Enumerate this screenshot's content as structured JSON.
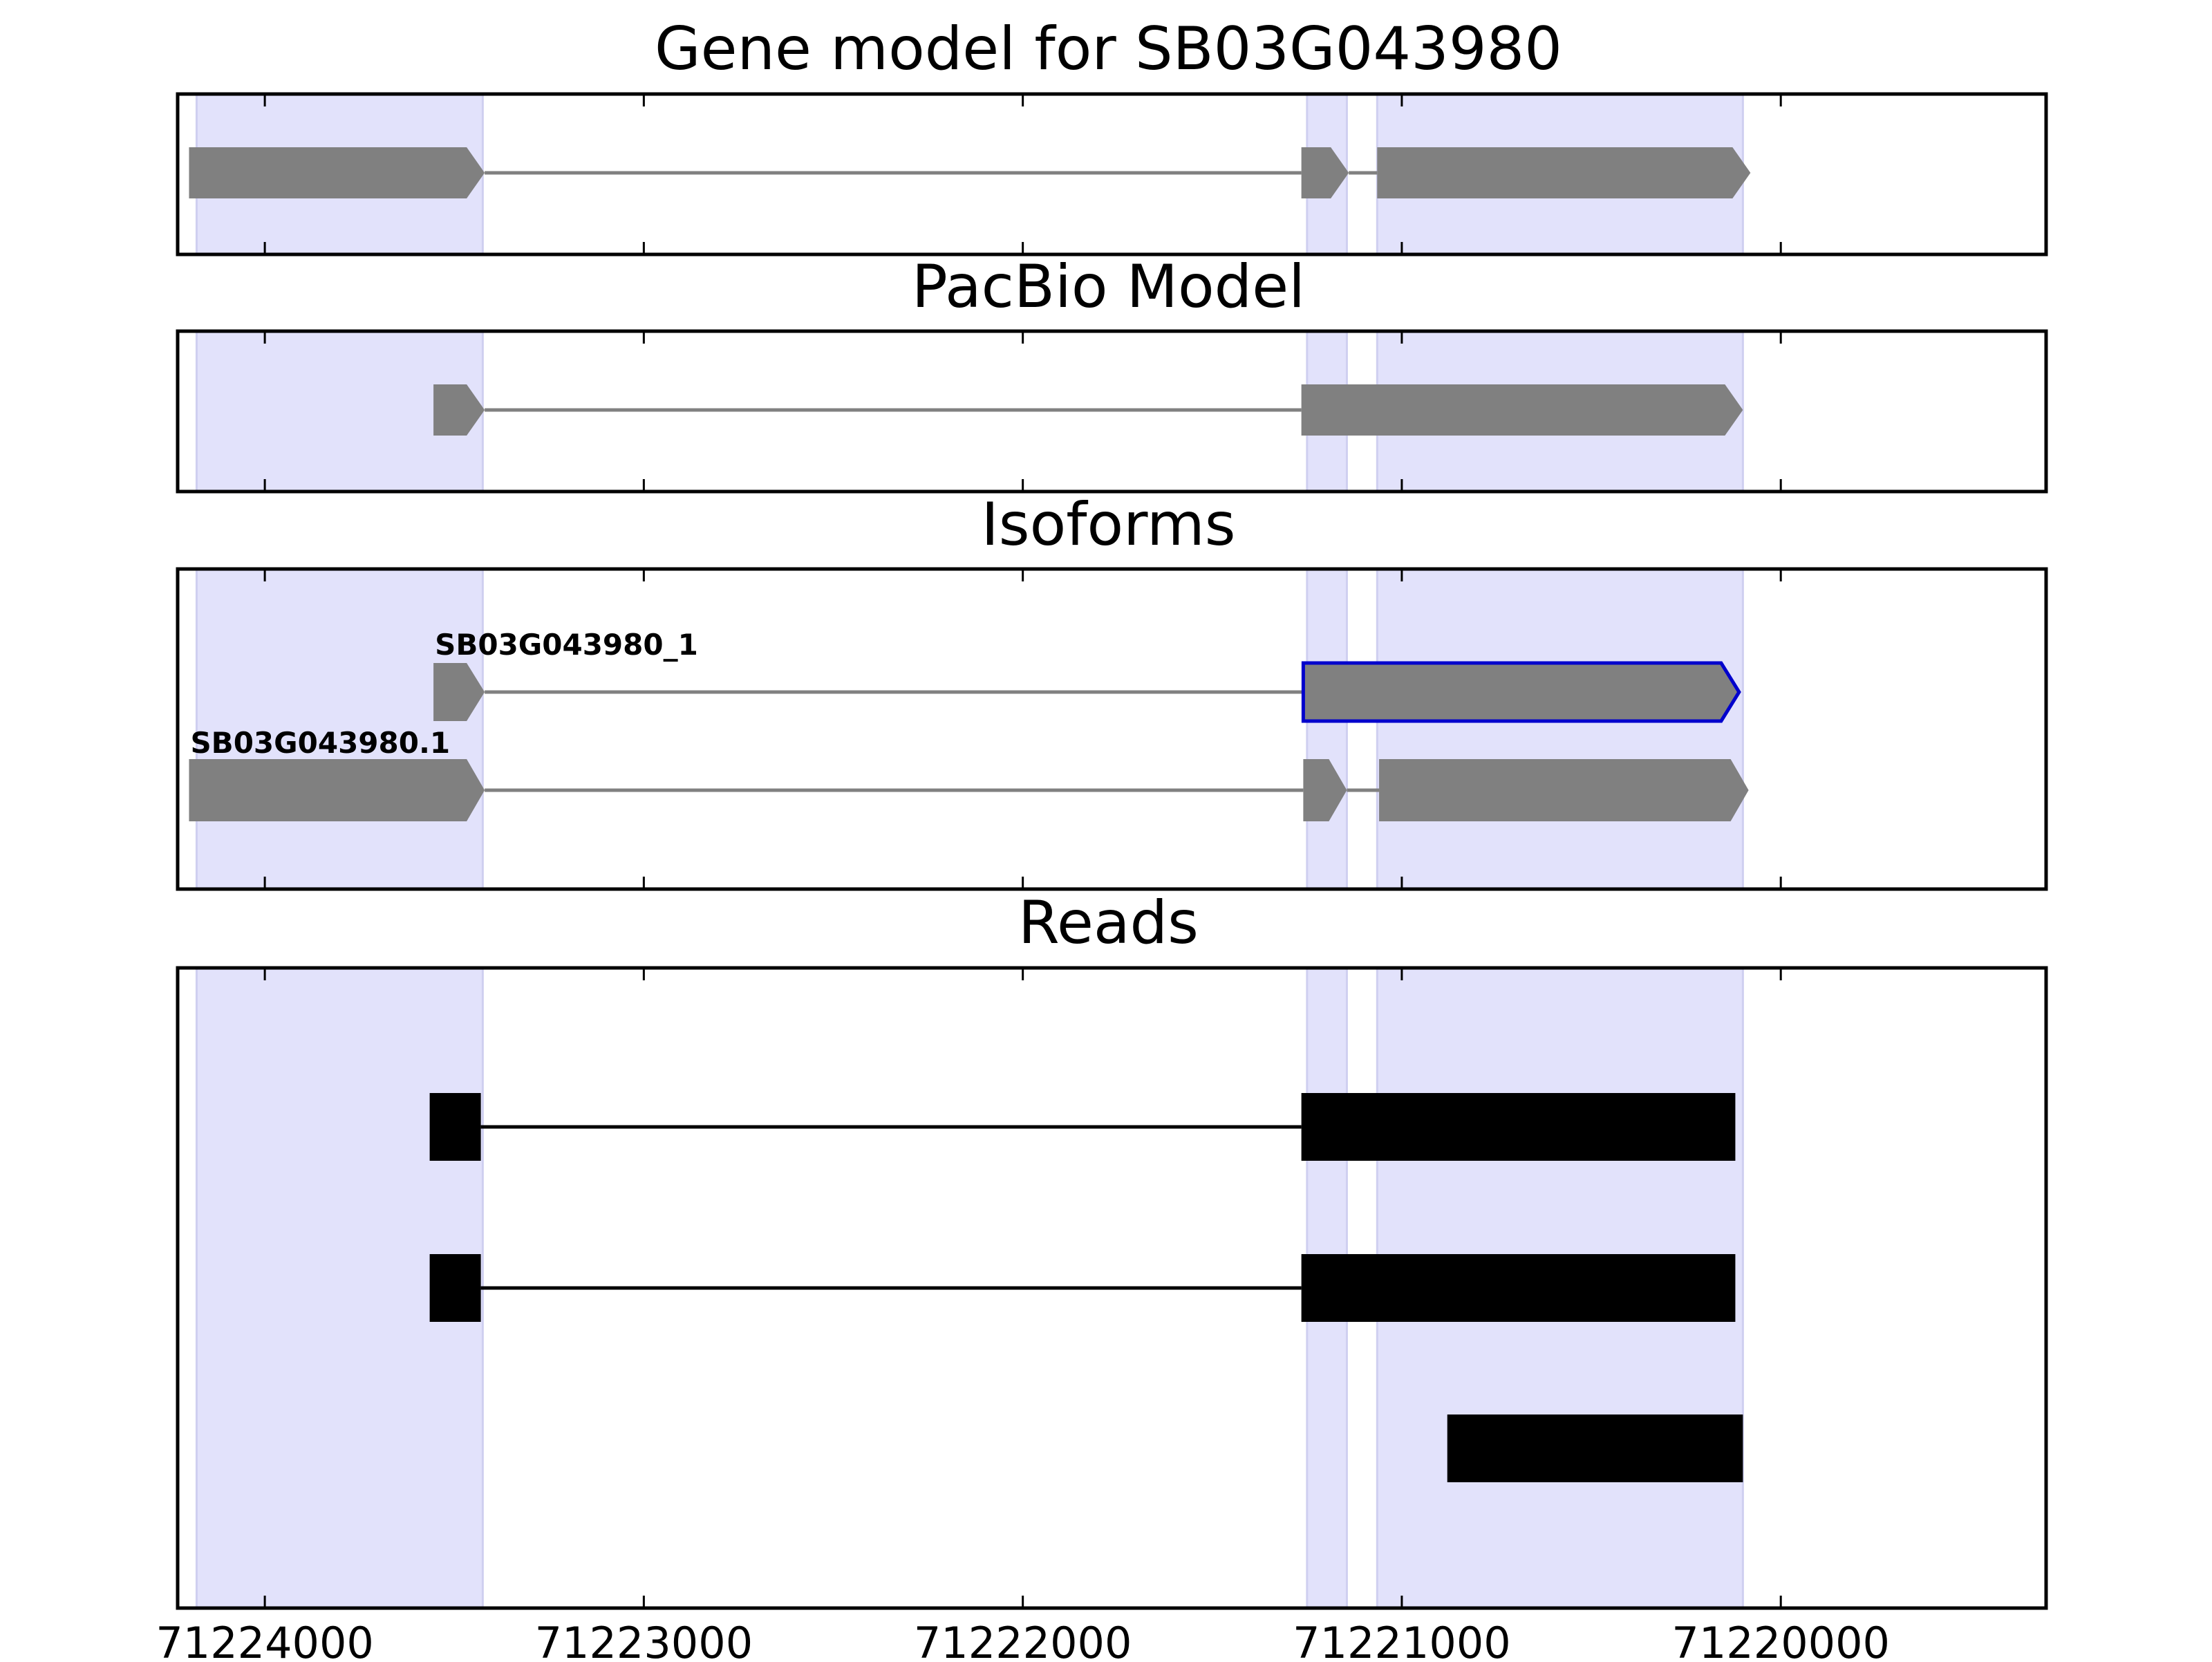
{
  "figure": {
    "panels": [
      {
        "key": "gene_model",
        "title": "Gene model for SB03G043980"
      },
      {
        "key": "pacbio",
        "title": "PacBio Model"
      },
      {
        "key": "isoforms",
        "title": "Isoforms"
      },
      {
        "key": "reads",
        "title": "Reads"
      }
    ],
    "x_axis": {
      "reversed": true,
      "ticks": [
        {
          "value": 71224000,
          "label": "71224000"
        },
        {
          "value": 71223000,
          "label": "71223000"
        },
        {
          "value": 71222000,
          "label": "71222000"
        },
        {
          "value": 71221000,
          "label": "71221000"
        },
        {
          "value": 71220000,
          "label": "71220000"
        }
      ]
    },
    "colors": {
      "highlight": "#e2e2fb",
      "highlight_edge": "#cfcff0",
      "gene_feature": "#808080",
      "intron_line": "#808080",
      "selected_outline": "#0000cc",
      "read_block": "#000000",
      "frame": "#000000"
    },
    "highlight_regions": [
      [
        71224180,
        71223425
      ],
      [
        71221250,
        71221145
      ],
      [
        71221065,
        71220100
      ]
    ]
  },
  "chart_data": {
    "type": "gene_structure",
    "x_range": [
      71224230,
      71219300
    ],
    "gene_model": {
      "title": "Gene model for SB03G043980",
      "exons": [
        [
          71224200,
          71223420
        ],
        [
          71221265,
          71221140
        ],
        [
          71221065,
          71220080
        ]
      ]
    },
    "pacbio_model": {
      "title": "PacBio Model",
      "exons": [
        [
          71223555,
          71223420
        ],
        [
          71221265,
          71220100
        ]
      ]
    },
    "isoforms": {
      "title": "Isoforms",
      "items": [
        {
          "label": "SB03G043980_1",
          "selected": true,
          "exons": [
            [
              71223555,
              71223420
            ],
            [
              71221260,
              71220110
            ]
          ]
        },
        {
          "label": "SB03G043980.1",
          "selected": false,
          "exons": [
            [
              71224200,
              71223420
            ],
            [
              71221260,
              71221145
            ],
            [
              71221060,
              71220085
            ]
          ]
        }
      ]
    },
    "reads": {
      "title": "Reads",
      "items": [
        {
          "exons": [
            [
              71223565,
              71223430
            ],
            [
              71221265,
              71220120
            ]
          ]
        },
        {
          "exons": [
            [
              71223565,
              71223430
            ],
            [
              71221265,
              71220120
            ]
          ]
        },
        {
          "exons": [
            [
              71220880,
              71220100
            ]
          ]
        }
      ]
    }
  }
}
